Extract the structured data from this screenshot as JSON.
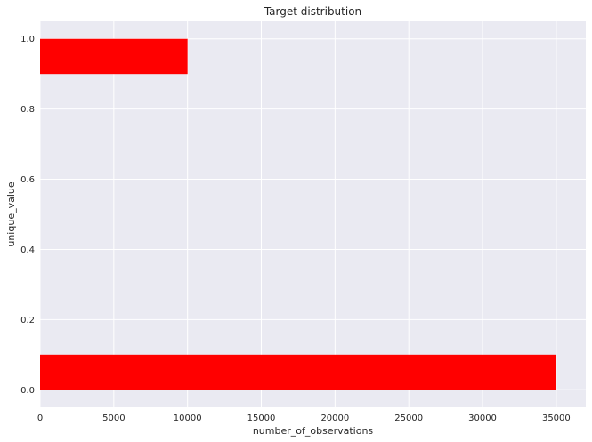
{
  "chart_data": {
    "type": "bar",
    "orientation": "horizontal",
    "title": "Target distribution",
    "xlabel": "number_of_observations",
    "ylabel": "unique_value",
    "bars": [
      {
        "category": 0,
        "value": 35000,
        "y_start": 0.0,
        "y_end": 0.1
      },
      {
        "category": 1,
        "value": 10000,
        "y_start": 0.9,
        "y_end": 1.0
      }
    ],
    "xlim": [
      0,
      37000
    ],
    "ylim": [
      -0.05,
      1.05
    ],
    "xticks": [
      0,
      5000,
      10000,
      15000,
      20000,
      25000,
      30000,
      35000
    ],
    "xtick_labels": [
      "0",
      "5000",
      "10000",
      "15000",
      "20000",
      "25000",
      "30000",
      "35000"
    ],
    "yticks": [
      0.0,
      0.2,
      0.4,
      0.6,
      0.8,
      1.0
    ],
    "ytick_labels": [
      "0.0",
      "0.2",
      "0.4",
      "0.6",
      "0.8",
      "1.0"
    ],
    "grid": true,
    "colors": {
      "bar": "#ff0000",
      "plot_background": "#eaeaf2",
      "grid": "#ffffff"
    }
  }
}
